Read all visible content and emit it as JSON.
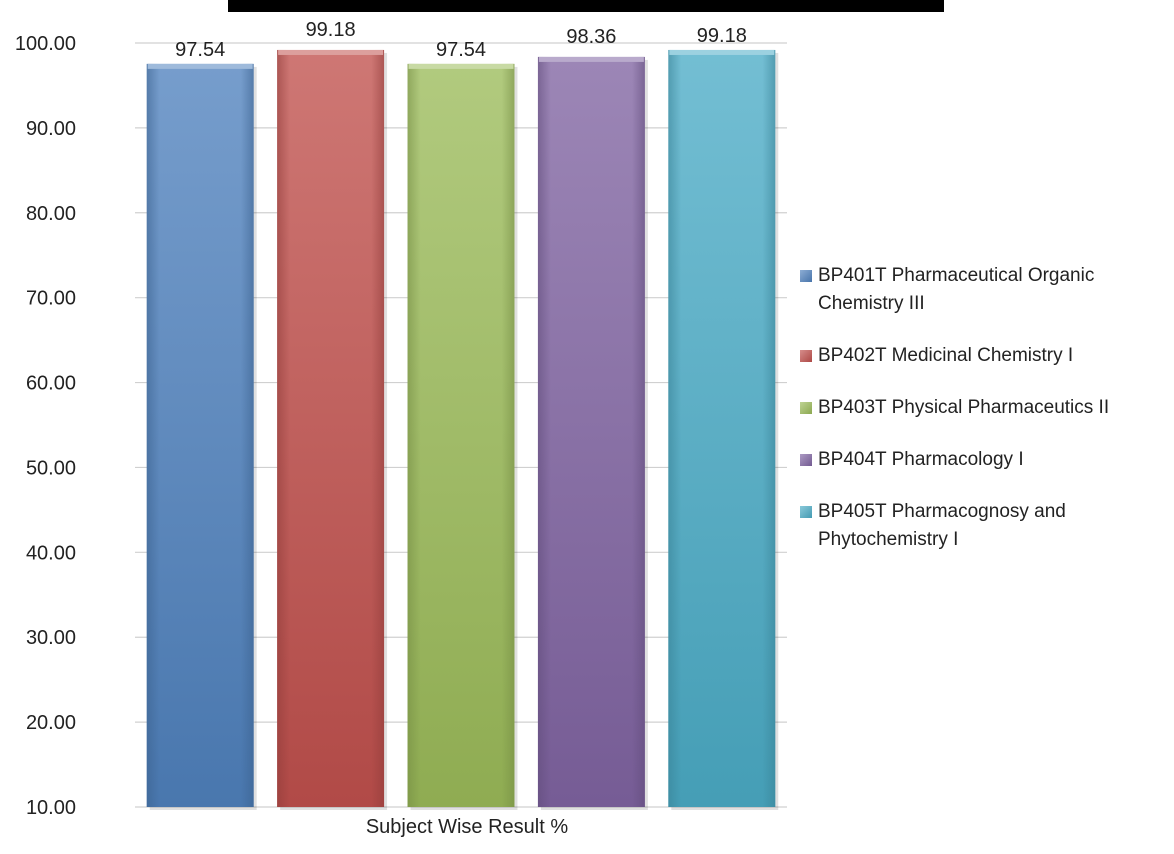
{
  "chart_data": {
    "type": "bar",
    "xlabel": "Subject Wise Result %",
    "ylim": [
      10,
      100
    ],
    "yticks": [
      "10.00",
      "20.00",
      "30.00",
      "40.00",
      "50.00",
      "60.00",
      "70.00",
      "80.00",
      "90.00",
      "100.00"
    ],
    "grid": true,
    "legend_position": "right",
    "series": [
      {
        "name": "BP401T Pharmaceutical Organic Chemistry III",
        "value": 97.54,
        "label": "97.54",
        "color": "#4f81bd"
      },
      {
        "name": "BP402T Medicinal Chemistry I",
        "value": 99.18,
        "label": "99.18",
        "color": "#c0504d"
      },
      {
        "name": "BP403T Physical Pharmaceutics II",
        "value": 97.54,
        "label": "97.54",
        "color": "#9bbb59"
      },
      {
        "name": "BP404T Pharmacology I",
        "value": 98.36,
        "label": "98.36",
        "color": "#8064a2"
      },
      {
        "name": "BP405T Pharmacognosy and Phytochemistry I",
        "value": 99.18,
        "label": "99.18",
        "color": "#4bacc6"
      }
    ]
  }
}
